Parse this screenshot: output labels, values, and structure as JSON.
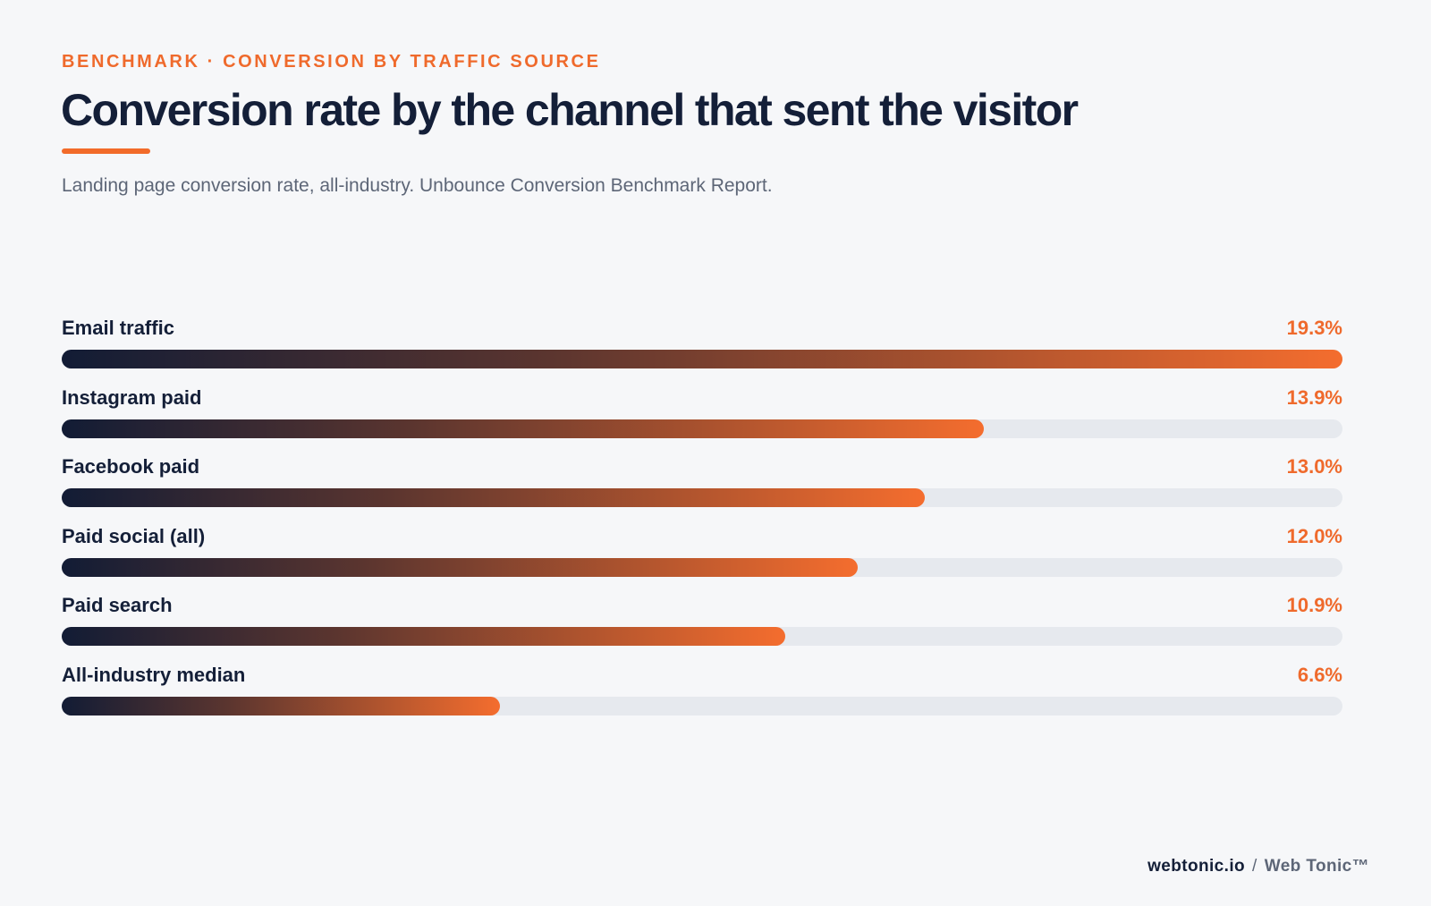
{
  "eyebrow": "BENCHMARK · CONVERSION BY TRAFFIC SOURCE",
  "title": "Conversion rate by the channel that sent the visitor",
  "subtitle": "Landing page conversion rate, all-industry. Unbounce Conversion Benchmark Report.",
  "colors": {
    "accent": "#ef6a2c",
    "navy": "#141f38",
    "track": "#e6e9ee"
  },
  "chart_data": {
    "type": "bar",
    "orientation": "horizontal",
    "categories": [
      "Email traffic",
      "Instagram paid",
      "Facebook paid",
      "Paid social (all)",
      "Paid search",
      "All-industry median"
    ],
    "values": [
      19.3,
      13.9,
      13.0,
      12.0,
      10.9,
      6.6
    ],
    "value_labels": [
      "19.3%",
      "13.9%",
      "13.0%",
      "12.0%",
      "10.9%",
      "6.6%"
    ],
    "unit": "%",
    "xlim": [
      0,
      19.3
    ],
    "grid": false,
    "legend": "none"
  },
  "footer": {
    "site": "webtonic.io",
    "separator": "/",
    "brand": "Web Tonic™"
  }
}
